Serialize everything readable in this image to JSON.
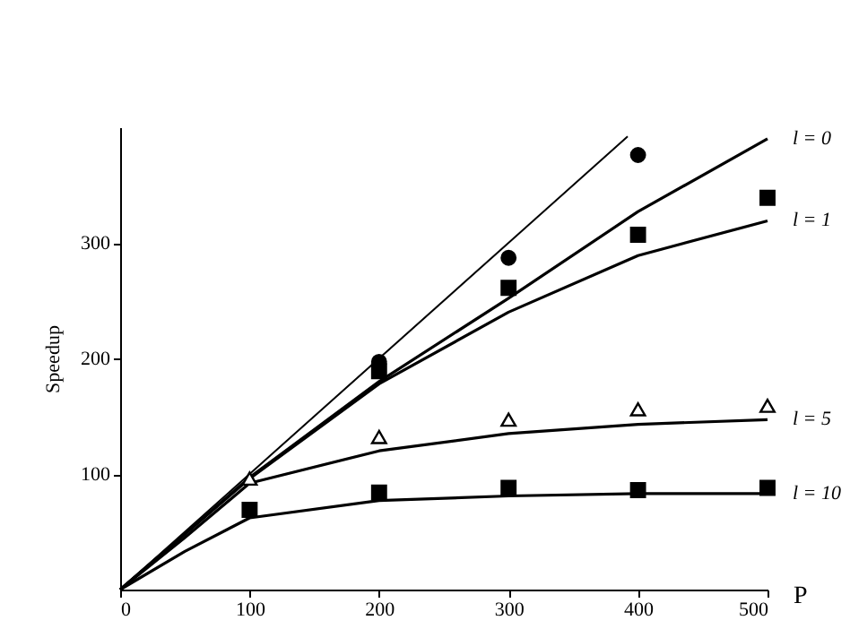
{
  "chart_data": {
    "type": "line",
    "xlabel": "P",
    "ylabel": "Speedup",
    "xlim": [
      0,
      500
    ],
    "ylim": [
      0,
      400
    ],
    "xticks": [
      0,
      100,
      200,
      300,
      400,
      500
    ],
    "yticks": [
      100,
      200,
      300
    ],
    "grid": false,
    "series": [
      {
        "color": "#000000",
        "x": [
          0,
          392
        ],
        "values": [
          0,
          392
        ]
      },
      {
        "name": "l = 0",
        "color": "#000000",
        "x": [
          0,
          50,
          100,
          200,
          300,
          400,
          500
        ],
        "values": [
          0,
          48,
          97,
          180,
          252,
          327,
          390
        ]
      },
      {
        "name": "l = 1",
        "color": "#000000",
        "x": [
          0,
          50,
          100,
          200,
          300,
          400,
          500
        ],
        "values": [
          0,
          48,
          96,
          178,
          240,
          289,
          319
        ]
      },
      {
        "name": "l = 5",
        "color": "#000000",
        "x": [
          0,
          50,
          100,
          200,
          300,
          400,
          500
        ],
        "values": [
          0,
          45,
          92,
          120,
          135,
          143,
          147
        ]
      },
      {
        "name": "l = 10",
        "color": "#000000",
        "x": [
          0,
          50,
          100,
          200,
          300,
          400,
          500
        ],
        "values": [
          0,
          33,
          62,
          77,
          81,
          83,
          83
        ]
      },
      {
        "type": "scatter",
        "marker": "circle",
        "color": "#000000",
        "x": [
          200,
          300,
          400
        ],
        "values": [
          197,
          287,
          376
        ]
      },
      {
        "type": "scatter",
        "marker": "square",
        "color": "#000000",
        "x": [
          200,
          300,
          400,
          500
        ],
        "values": [
          189,
          261,
          307,
          339
        ]
      },
      {
        "type": "scatter",
        "marker": "triangle",
        "color": "#000000",
        "x": [
          100,
          200,
          300,
          400,
          500
        ],
        "values": [
          96,
          132,
          147,
          156,
          159
        ]
      },
      {
        "type": "scatter",
        "marker": "square",
        "color": "#000000",
        "x": [
          100,
          200,
          300,
          400,
          500
        ],
        "values": [
          69,
          84,
          88,
          86,
          88
        ]
      }
    ]
  }
}
